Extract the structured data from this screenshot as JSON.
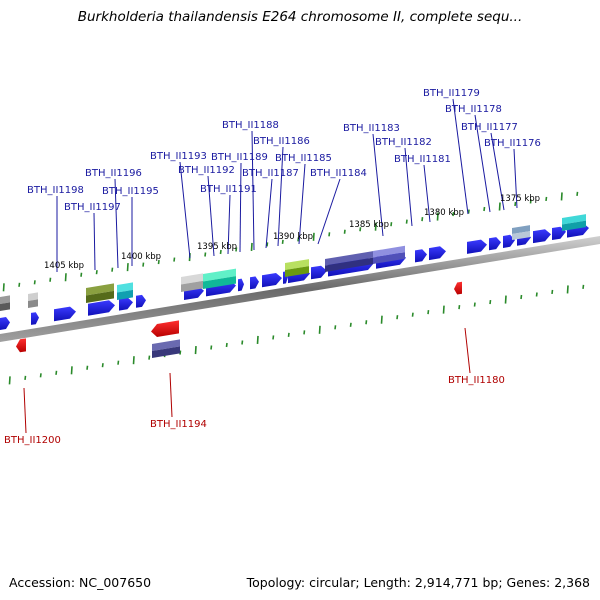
{
  "title": "Burkholderia thailandensis E264 chromosome II, complete sequ...",
  "footer": {
    "accession": "Accession: NC_007650",
    "stats": "Topology: circular; Length: 2,914,771 bp; Genes: 2,368"
  },
  "colors": {
    "forward_gene": "#1a1adc",
    "reverse_gene": "#e00000",
    "forward_label": "#1a1aa0",
    "reverse_label": "#b00000",
    "tick": "#2a8a2a",
    "backbone": "#808080"
  },
  "scale_labels": [
    "1405 kbp",
    "1400 kbp",
    "1395 kbp",
    "1390 kbp",
    "1385 kbp",
    "1380 kbp",
    "1375 kbp"
  ],
  "forward_labels": [
    "BTH_II1198",
    "BTH_II1197",
    "BTH_II1196",
    "BTH_II1195",
    "BTH_II1193",
    "BTH_II1192",
    "BTH_II1191",
    "BTH_II1189",
    "BTH_II1188",
    "BTH_II1187",
    "BTH_II1186",
    "BTH_II1185",
    "BTH_II1184",
    "BTH_II1183",
    "BTH_II1182",
    "BTH_II1181",
    "BTH_II1179",
    "BTH_II1178",
    "BTH_II1177",
    "BTH_II1176"
  ],
  "reverse_labels": [
    "BTH_II1200",
    "BTH_II1194",
    "BTH_II1180"
  ]
}
